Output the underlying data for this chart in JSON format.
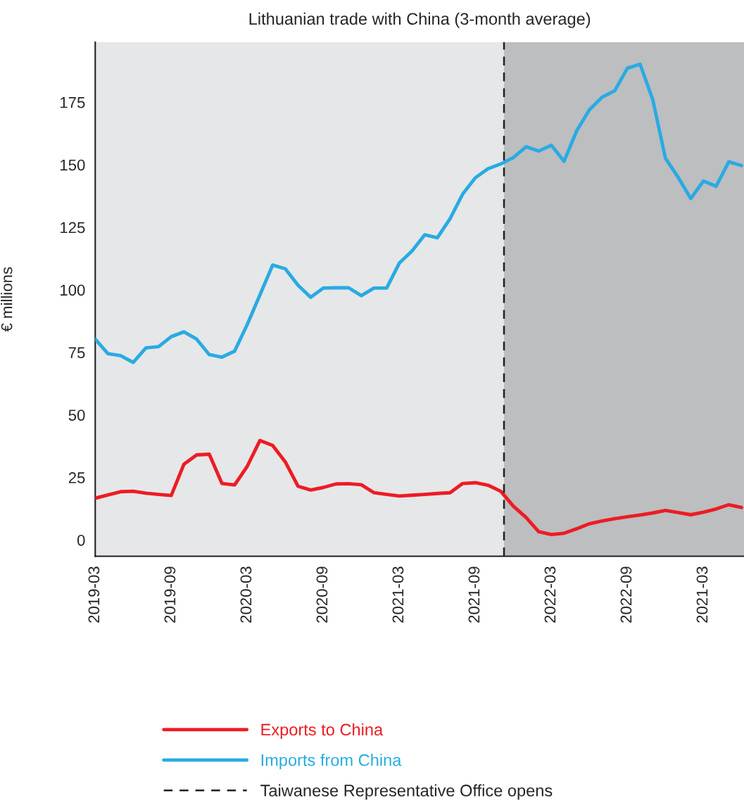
{
  "chart_data": {
    "type": "line",
    "title": "Lithuanian trade with China (3-month average)",
    "ylabel": "€ millions",
    "ylim": [
      -6.5,
      199
    ],
    "categories": [
      "2019-03",
      null,
      null,
      null,
      null,
      null,
      "2019-09",
      null,
      null,
      null,
      null,
      null,
      "2020-03",
      null,
      null,
      null,
      null,
      null,
      "2020-09",
      null,
      null,
      null,
      null,
      null,
      "2021-03",
      null,
      null,
      null,
      null,
      null,
      "2021-09",
      null,
      null,
      null,
      null,
      null,
      "2022-03",
      null,
      null,
      null,
      null,
      null,
      "2022-09",
      null,
      null,
      null,
      null,
      null,
      "2021-03",
      null,
      null,
      null
    ],
    "yticks": [
      0,
      25,
      50,
      75,
      100,
      125,
      150,
      175
    ],
    "series": [
      {
        "name": "Exports to China",
        "color": "#ed1c24",
        "values": [
          16.7,
          18.0,
          19.3,
          19.5,
          18.7,
          18.2,
          17.8,
          30.3,
          34.0,
          34.3,
          22.6,
          22.0,
          29.5,
          39.8,
          37.8,
          31.2,
          21.5,
          20.0,
          21.0,
          22.4,
          22.5,
          22.1,
          18.9,
          18.2,
          17.6,
          17.9,
          18.2,
          18.6,
          18.9,
          22.6,
          22.9,
          21.9,
          19.5,
          13.5,
          9.0,
          3.3,
          2.2,
          2.7,
          4.5,
          6.5,
          7.6,
          8.5,
          9.3,
          10.0,
          10.8,
          11.8,
          11.0,
          10.1,
          11.1,
          12.4,
          14.1,
          13.0
        ]
      },
      {
        "name": "Imports from China",
        "color": "#29abe2",
        "values": [
          80.3,
          74.5,
          73.7,
          71.0,
          76.8,
          77.3,
          81.3,
          83.2,
          80.3,
          74.1,
          73.1,
          75.5,
          86.2,
          98.0,
          109.9,
          108.4,
          101.9,
          97.0,
          100.7,
          100.8,
          100.8,
          97.7,
          100.7,
          100.7,
          110.7,
          115.5,
          122.0,
          120.8,
          128.4,
          138.3,
          144.8,
          148.4,
          150.3,
          152.9,
          157.2,
          155.5,
          157.8,
          151.4,
          163.6,
          172.0,
          177.0,
          179.6,
          188.6,
          190.2,
          176.0,
          152.6,
          145.0,
          136.5,
          143.5,
          141.4,
          151.2,
          149.7
        ]
      }
    ],
    "ref_lines": [
      {
        "axis": "x",
        "label": "Taiwanese Representative Office opens",
        "color": "#231f20",
        "line_style": "dashed"
      }
    ],
    "grid": false,
    "legend": "bottom",
    "marker": "none",
    "line_style": "solid"
  }
}
